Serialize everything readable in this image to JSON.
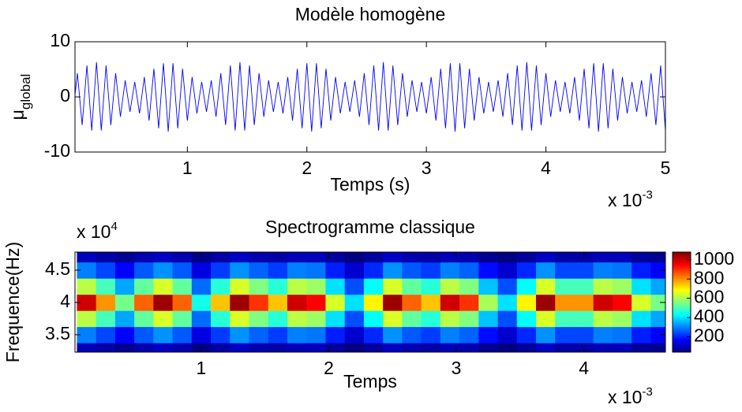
{
  "chart_data": [
    {
      "type": "line",
      "title": "Modèle homogène",
      "ylabel": "μ",
      "ylabel_sub": "global",
      "xlabel": "Temps (s)",
      "x_multiplier": {
        "base": "x 10",
        "exponent": "-3"
      },
      "xlim": [
        0.06,
        5
      ],
      "ylim": [
        -10,
        10
      ],
      "xticks": [
        1,
        2,
        3,
        4,
        5
      ],
      "yticks": [
        -10,
        0,
        10
      ],
      "grid": false,
      "x": [
        0,
        0.04,
        0.08,
        0.12,
        0.16,
        0.2,
        0.24,
        0.28,
        0.32,
        0.36,
        0.4,
        0.44,
        0.48,
        0.52,
        0.56,
        0.6,
        0.64,
        0.68,
        0.72,
        0.76,
        0.8,
        0.84,
        0.88,
        0.92,
        0.96,
        1,
        1.04,
        1.08,
        1.12,
        1.16,
        1.2,
        1.24,
        1.28,
        1.32,
        1.36,
        1.4,
        1.44,
        1.48,
        1.52,
        1.56,
        1.6,
        1.64,
        1.68,
        1.72,
        1.76,
        1.8,
        1.84,
        1.88,
        1.92,
        1.96,
        2,
        2.04,
        2.08,
        2.12,
        2.16,
        2.2,
        2.24,
        2.28,
        2.32,
        2.36,
        2.4,
        2.44,
        2.48,
        2.52,
        2.56,
        2.6,
        2.64,
        2.68,
        2.72,
        2.76,
        2.8,
        2.84,
        2.88,
        2.92,
        2.96,
        3,
        3.04,
        3.08,
        3.12,
        3.16,
        3.2,
        3.24,
        3.28,
        3.32,
        3.36,
        3.4,
        3.44,
        3.48,
        3.52,
        3.56,
        3.6,
        3.64,
        3.68,
        3.72,
        3.76,
        3.8,
        3.84,
        3.88,
        3.92,
        3.96,
        4,
        4.04,
        4.08,
        4.12,
        4.16,
        4.2,
        4.24,
        4.28,
        4.32,
        4.36,
        4.4,
        4.44,
        4.48,
        4.52,
        4.56,
        4.6,
        4.64,
        4.68,
        4.72,
        4.76,
        4.8,
        4.84,
        4.88,
        4.92,
        4.96,
        5
      ],
      "series": [
        {
          "color": "#0000ff",
          "values": [
            3.0,
            -3.6,
            4.3,
            -5.1,
            5.7,
            -6.1,
            6.3,
            -6.1,
            5.7,
            -5.1,
            4.3,
            -3.6,
            3.0,
            -2.7,
            2.7,
            -3.0,
            3.6,
            -4.3,
            5.1,
            -5.7,
            6.1,
            -6.3,
            6.1,
            -5.7,
            5.1,
            -4.3,
            3.6,
            -3.0,
            2.7,
            -2.7,
            3.0,
            -3.6,
            4.3,
            -5.1,
            5.7,
            -6.1,
            6.3,
            -6.1,
            5.7,
            -5.1,
            4.3,
            -3.6,
            3.0,
            -2.7,
            2.7,
            -3.0,
            3.6,
            -4.3,
            5.1,
            -5.7,
            6.1,
            -6.3,
            6.1,
            -5.7,
            5.1,
            -4.3,
            3.6,
            -3.0,
            2.7,
            -2.7,
            3.0,
            -3.6,
            4.3,
            -5.1,
            5.7,
            -6.1,
            6.3,
            -6.1,
            5.7,
            -5.1,
            4.3,
            -3.6,
            3.0,
            -2.7,
            2.7,
            -3.0,
            3.6,
            -4.3,
            5.1,
            -5.7,
            6.1,
            -6.3,
            6.1,
            -5.7,
            5.1,
            -4.3,
            3.6,
            -3.0,
            2.7,
            -2.7,
            3.0,
            -3.6,
            4.3,
            -5.1,
            5.7,
            -6.1,
            6.3,
            -6.1,
            5.7,
            -5.1,
            4.3,
            -3.6,
            3.0,
            -2.7,
            2.7,
            -3.0,
            3.6,
            -4.3,
            5.1,
            -5.7,
            6.1,
            -6.3,
            6.1,
            -5.7,
            5.1,
            -4.3,
            3.6,
            -3.0,
            2.7,
            -2.7,
            3.0,
            -3.6,
            4.3,
            -5.1,
            5.7,
            -6.1
          ]
        }
      ]
    },
    {
      "type": "heatmap",
      "title": "Spectrogramme classique",
      "ylabel": "Frequence(Hz)",
      "xlabel": "Temps",
      "x_multiplier": {
        "base": "x 10",
        "exponent": "-3"
      },
      "y_multiplier": {
        "base": "x 10",
        "exponent": "4"
      },
      "xlim": [
        0.01,
        4.64
      ],
      "ylim": [
        3.23,
        4.78
      ],
      "xticks": [
        1,
        2,
        3,
        4
      ],
      "yticks": [
        3.5,
        4,
        4.5
      ],
      "colorbar": true,
      "clim": [
        40,
        1080
      ],
      "cticks": [
        200,
        400,
        600,
        800,
        1000
      ],
      "x": [
        0.1,
        0.25,
        0.4,
        0.55,
        0.7,
        0.85,
        1.0,
        1.15,
        1.3,
        1.45,
        1.6,
        1.75,
        1.9,
        2.05,
        2.2,
        2.35,
        2.5,
        2.65,
        2.8,
        2.95,
        3.1,
        3.25,
        3.4,
        3.55,
        3.7,
        3.85,
        4.0,
        4.15,
        4.3,
        4.45,
        4.6
      ],
      "y": [
        3.25,
        3.5,
        3.75,
        4.0,
        4.25,
        4.5,
        4.75
      ],
      "z": [
        [
          100,
          80,
          60,
          90,
          110,
          90,
          50,
          80,
          110,
          90,
          80,
          100,
          100,
          70,
          40,
          70,
          110,
          90,
          80,
          100,
          90,
          60,
          40,
          70,
          110,
          80,
          80,
          100,
          100,
          70,
          60
        ],
        [
          300,
          240,
          170,
          260,
          320,
          260,
          140,
          230,
          320,
          270,
          230,
          300,
          290,
          200,
          120,
          210,
          320,
          260,
          230,
          300,
          270,
          180,
          120,
          210,
          320,
          240,
          240,
          300,
          290,
          200,
          170
        ],
        [
          620,
          500,
          340,
          530,
          650,
          530,
          280,
          470,
          650,
          560,
          470,
          620,
          590,
          400,
          250,
          430,
          650,
          530,
          470,
          620,
          560,
          370,
          250,
          430,
          650,
          500,
          500,
          620,
          590,
          400,
          340
        ],
        [
          1000,
          800,
          550,
          850,
          1050,
          850,
          450,
          750,
          1050,
          900,
          750,
          1000,
          950,
          650,
          400,
          700,
          1050,
          850,
          750,
          1000,
          900,
          600,
          400,
          700,
          1050,
          800,
          800,
          1000,
          950,
          650,
          550
        ],
        [
          620,
          500,
          340,
          530,
          650,
          530,
          280,
          470,
          650,
          560,
          470,
          620,
          590,
          400,
          250,
          430,
          650,
          530,
          470,
          620,
          560,
          370,
          250,
          430,
          650,
          500,
          500,
          620,
          590,
          400,
          340
        ],
        [
          300,
          240,
          170,
          260,
          320,
          260,
          140,
          230,
          320,
          270,
          230,
          300,
          290,
          200,
          120,
          210,
          320,
          260,
          230,
          300,
          270,
          180,
          120,
          210,
          320,
          240,
          240,
          300,
          290,
          200,
          170
        ],
        [
          100,
          80,
          60,
          90,
          110,
          90,
          50,
          80,
          110,
          90,
          80,
          100,
          100,
          70,
          40,
          70,
          110,
          90,
          80,
          100,
          90,
          60,
          40,
          70,
          110,
          80,
          80,
          100,
          100,
          70,
          60
        ]
      ]
    }
  ]
}
